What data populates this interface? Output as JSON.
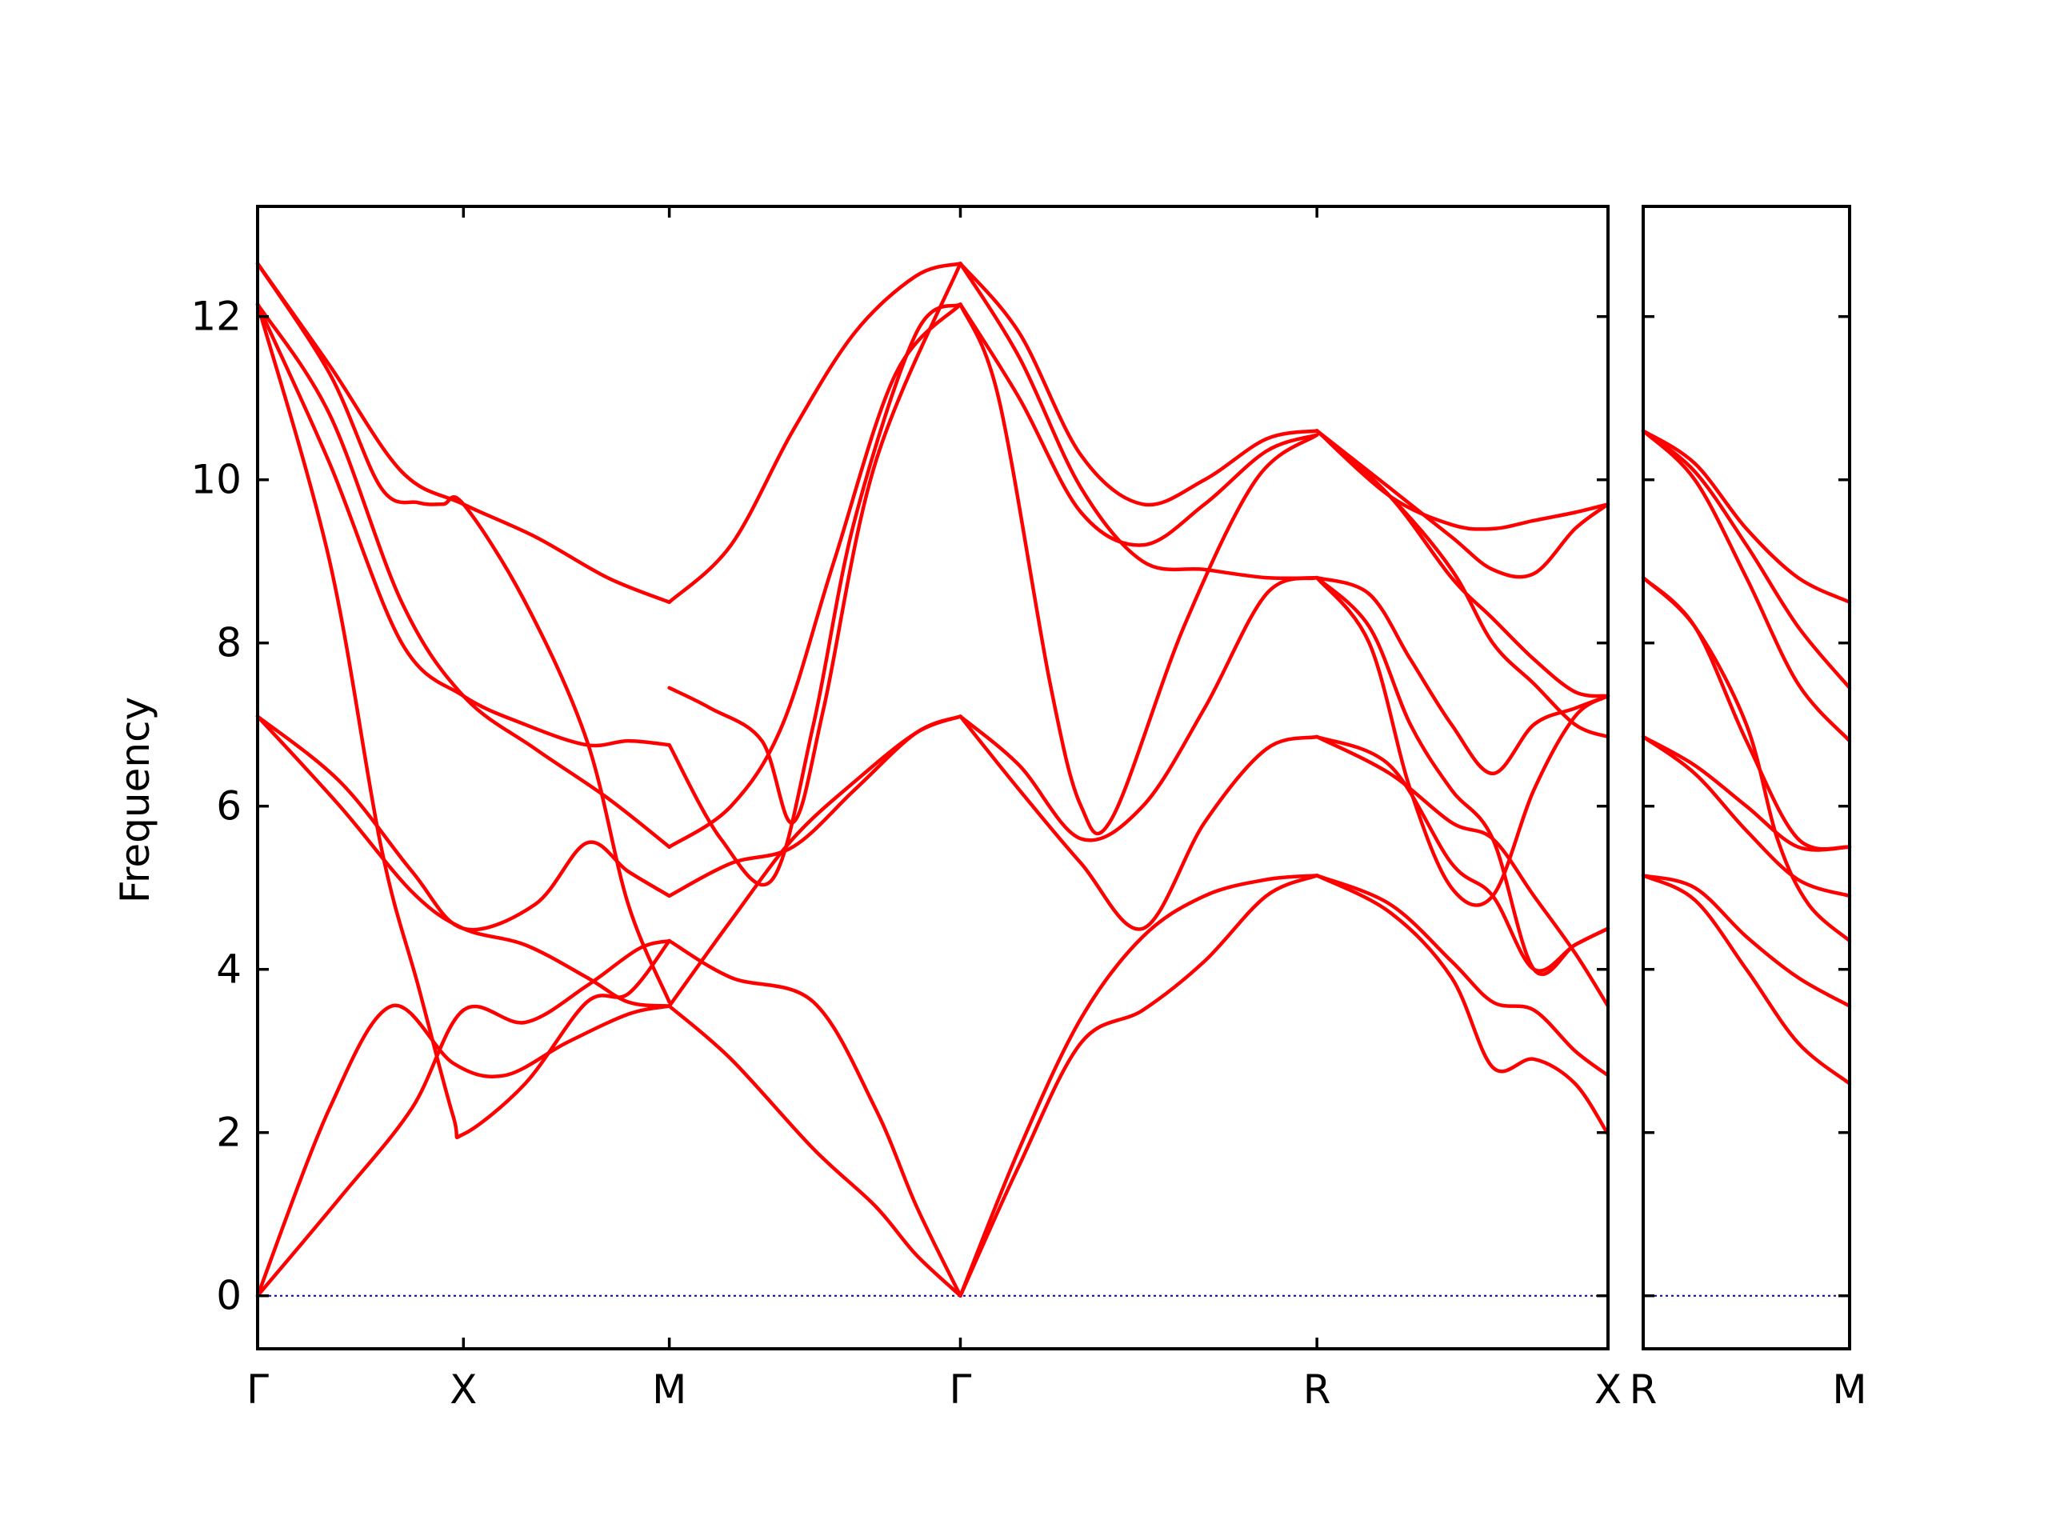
{
  "chart_data": {
    "type": "line",
    "title": "",
    "xlabel": "",
    "ylabel": "Frequency",
    "ylim": [
      -0.65,
      13.35
    ],
    "yticks": [
      0,
      2,
      4,
      6,
      8,
      10,
      12
    ],
    "line_color": "#ff0000",
    "zero_line_color": "#0000aa",
    "panels": [
      {
        "xticks": [
          {
            "x": 0.0,
            "label": "Γ"
          },
          {
            "x": 1.0,
            "label": "X"
          },
          {
            "x": 2.0,
            "label": "M"
          },
          {
            "x": 3.414,
            "label": "Γ"
          },
          {
            "x": 5.146,
            "label": "R"
          },
          {
            "x": 6.56,
            "label": "X"
          }
        ],
        "xlim": [
          0.0,
          6.56
        ],
        "bands": [
          {
            "x": [
              0,
              0.35,
              0.65,
              0.95,
              1.2,
              1.5,
              1.8,
              2.0
            ],
            "y": [
              0.0,
              2.3,
              3.55,
              2.85,
              2.7,
              3.1,
              3.45,
              3.55
            ]
          },
          {
            "x": [
              0,
              0.4,
              0.75,
              1.0,
              1.3,
              1.6,
              1.85,
              2.0
            ],
            "y": [
              0.0,
              1.2,
              2.3,
              3.5,
              3.35,
              3.8,
              4.25,
              4.35
            ]
          },
          {
            "x": [
              0,
              0.4,
              0.75,
              1.0,
              1.3,
              1.6,
              1.8,
              2.0
            ],
            "y": [
              7.1,
              6.0,
              4.95,
              4.5,
              4.3,
              3.9,
              3.6,
              3.55
            ]
          },
          {
            "x": [
              0,
              0.4,
              0.75,
              1.0,
              1.35,
              1.6,
              1.8,
              2.0
            ],
            "y": [
              7.1,
              6.3,
              5.2,
              4.5,
              4.8,
              5.55,
              5.2,
              4.9
            ]
          },
          {
            "x": [
              0,
              0.35,
              0.6,
              0.78,
              0.95,
              1.0,
              1.3,
              1.6,
              1.8,
              2.0
            ],
            "y": [
              12.15,
              9.0,
              5.5,
              3.8,
              2.2,
              1.98,
              2.6,
              3.6,
              3.7,
              4.35
            ]
          },
          {
            "x": [
              0,
              0.35,
              0.7,
              1.0,
              1.3,
              1.6,
              1.8,
              2.0
            ],
            "y": [
              12.15,
              10.2,
              8.0,
              7.35,
              7.0,
              6.75,
              6.8,
              6.75
            ]
          },
          {
            "x": [
              0,
              0.35,
              0.7,
              1.0,
              1.35,
              1.7,
              2.0
            ],
            "y": [
              12.15,
              10.8,
              8.5,
              7.35,
              6.7,
              6.1,
              5.5
            ]
          },
          {
            "x": [
              0,
              0.35,
              0.7,
              1.0,
              1.35,
              1.7,
              2.0
            ],
            "y": [
              12.65,
              11.4,
              10.1,
              9.7,
              9.3,
              8.8,
              8.5
            ]
          },
          {
            "x": [
              0,
              0.35,
              0.6,
              0.78,
              0.9,
              1.0,
              1.3,
              1.6,
              1.8,
              2.0
            ],
            "y": [
              12.65,
              11.3,
              9.9,
              9.72,
              9.7,
              9.7,
              8.5,
              6.8,
              4.8,
              3.6
            ]
          },
          {
            "x": [
              2.0,
              2.3,
              2.7,
              3.0,
              3.2,
              3.414
            ],
            "y": [
              3.55,
              2.9,
              1.8,
              1.1,
              0.5,
              0.0
            ]
          },
          {
            "x": [
              2.0,
              2.3,
              2.7,
              3.0,
              3.2,
              3.414
            ],
            "y": [
              4.35,
              3.9,
              3.6,
              2.3,
              1.1,
              0.0
            ]
          },
          {
            "x": [
              2.0,
              2.3,
              2.6,
              2.9,
              3.2,
              3.414
            ],
            "y": [
              4.9,
              5.3,
              5.5,
              6.2,
              6.9,
              7.1
            ]
          },
          {
            "x": [
              2.0,
              2.3,
              2.6,
              2.9,
              3.2,
              3.414
            ],
            "y": [
              3.55,
              4.6,
              5.6,
              6.3,
              6.9,
              7.1
            ]
          },
          {
            "x": [
              2.0,
              2.25,
              2.5,
              2.7,
              2.9,
              3.2,
              3.414
            ],
            "y": [
              6.75,
              5.6,
              5.1,
              7.0,
              9.5,
              11.8,
              12.15
            ]
          },
          {
            "x": [
              2.0,
              2.3,
              2.55,
              2.8,
              3.1,
              3.414
            ],
            "y": [
              5.5,
              6.0,
              7.0,
              9.0,
              11.3,
              12.15
            ]
          },
          {
            "x": [
              2.0,
              2.2,
              2.45,
              2.6,
              2.75,
              3.0,
              3.414
            ],
            "y": [
              7.45,
              7.2,
              6.8,
              5.8,
              7.2,
              10.2,
              12.65
            ]
          },
          {
            "x": [
              2.0,
              2.3,
              2.6,
              2.9,
              3.2,
              3.414
            ],
            "y": [
              8.5,
              9.2,
              10.6,
              11.8,
              12.5,
              12.65
            ]
          },
          {
            "x": [
              3.414,
              3.7,
              4.0,
              4.3,
              4.6,
              4.9,
              5.146
            ],
            "y": [
              0.0,
              1.6,
              3.1,
              3.5,
              4.1,
              4.9,
              5.15
            ]
          },
          {
            "x": [
              3.414,
              3.7,
              4.0,
              4.3,
              4.6,
              4.9,
              5.146
            ],
            "y": [
              0.0,
              1.8,
              3.4,
              4.4,
              4.9,
              5.1,
              5.15
            ]
          },
          {
            "x": [
              3.414,
              3.7,
              4.0,
              4.3,
              4.6,
              4.9,
              5.146
            ],
            "y": [
              7.1,
              6.2,
              5.3,
              4.5,
              5.8,
              6.7,
              6.85
            ]
          },
          {
            "x": [
              3.414,
              3.7,
              4.0,
              4.3,
              4.6,
              4.9,
              5.146
            ],
            "y": [
              7.1,
              6.5,
              5.6,
              6.0,
              7.2,
              8.6,
              8.8
            ]
          },
          {
            "x": [
              3.414,
              3.6,
              3.85,
              4.0,
              4.15,
              4.5,
              4.85,
              5.146
            ],
            "y": [
              12.15,
              11.0,
              7.5,
              6.0,
              5.85,
              8.2,
              10.0,
              10.55
            ]
          },
          {
            "x": [
              3.414,
              3.7,
              4.0,
              4.3,
              4.6,
              4.9,
              5.146
            ],
            "y": [
              12.15,
              11.0,
              9.6,
              9.2,
              9.7,
              10.35,
              10.55
            ]
          },
          {
            "x": [
              3.414,
              3.7,
              4.0,
              4.3,
              4.6,
              4.9,
              5.146
            ],
            "y": [
              12.65,
              11.5,
              9.9,
              9.0,
              8.9,
              8.8,
              8.8
            ]
          },
          {
            "x": [
              3.414,
              3.7,
              4.0,
              4.3,
              4.6,
              4.9,
              5.146
            ],
            "y": [
              12.65,
              11.8,
              10.3,
              9.7,
              10.0,
              10.5,
              10.6
            ]
          },
          {
            "x": [
              5.146,
              5.5,
              5.8,
              6.0,
              6.2,
              6.4,
              6.56
            ],
            "y": [
              5.15,
              4.8,
              4.1,
              3.6,
              3.5,
              3.0,
              2.7
            ]
          },
          {
            "x": [
              5.146,
              5.5,
              5.8,
              6.0,
              6.2,
              6.4,
              6.56
            ],
            "y": [
              5.15,
              4.7,
              3.9,
              2.8,
              2.9,
              2.6,
              1.98
            ]
          },
          {
            "x": [
              5.146,
              5.5,
              5.8,
              6.0,
              6.2,
              6.4,
              6.56
            ],
            "y": [
              6.85,
              6.5,
              5.3,
              4.9,
              4.0,
              4.3,
              4.5
            ]
          },
          {
            "x": [
              5.146,
              5.5,
              5.8,
              6.0,
              6.2,
              6.4,
              6.56
            ],
            "y": [
              6.85,
              6.4,
              5.8,
              5.6,
              4.9,
              4.2,
              3.55
            ]
          },
          {
            "x": [
              5.146,
              5.4,
              5.6,
              5.8,
              6.0,
              6.2,
              6.4,
              6.56
            ],
            "y": [
              8.8,
              8.0,
              6.2,
              5.0,
              4.9,
              6.2,
              7.1,
              7.35
            ]
          },
          {
            "x": [
              5.146,
              5.4,
              5.6,
              5.8,
              6.0,
              6.2,
              6.4,
              6.56
            ],
            "y": [
              8.8,
              8.2,
              7.0,
              6.2,
              5.6,
              4.0,
              4.3,
              4.5
            ]
          },
          {
            "x": [
              5.146,
              5.4,
              5.6,
              5.8,
              6.0,
              6.2,
              6.4,
              6.56
            ],
            "y": [
              8.8,
              8.6,
              7.8,
              7.0,
              6.4,
              7.0,
              7.2,
              7.35
            ]
          },
          {
            "x": [
              5.146,
              5.5,
              5.8,
              6.0,
              6.2,
              6.4,
              6.56
            ],
            "y": [
              10.6,
              9.8,
              8.8,
              8.3,
              7.8,
              7.4,
              7.35
            ]
          },
          {
            "x": [
              5.146,
              5.5,
              5.8,
              6.0,
              6.2,
              6.4,
              6.56
            ],
            "y": [
              10.6,
              9.9,
              9.3,
              8.9,
              8.85,
              9.4,
              9.7
            ]
          },
          {
            "x": [
              5.146,
              5.5,
              5.8,
              6.0,
              6.2,
              6.4,
              6.56
            ],
            "y": [
              10.6,
              9.8,
              9.45,
              9.4,
              9.5,
              9.6,
              9.7
            ]
          },
          {
            "x": [
              5.146,
              5.5,
              5.8,
              6.0,
              6.2,
              6.4,
              6.56
            ],
            "y": [
              10.6,
              9.8,
              8.9,
              8.0,
              7.5,
              7.0,
              6.85
            ]
          }
        ]
      },
      {
        "xticks": [
          {
            "x": 0.0,
            "label": "R"
          },
          {
            "x": 1.0,
            "label": "M"
          }
        ],
        "xlim": [
          0.0,
          1.0
        ],
        "bands": [
          {
            "x": [
              0,
              0.25,
              0.5,
              0.75,
              1.0
            ],
            "y": [
              5.15,
              4.85,
              4.0,
              3.1,
              2.6
            ]
          },
          {
            "x": [
              0,
              0.25,
              0.5,
              0.75,
              1.0
            ],
            "y": [
              5.15,
              5.0,
              4.4,
              3.9,
              3.55
            ]
          },
          {
            "x": [
              0,
              0.25,
              0.5,
              0.75,
              1.0
            ],
            "y": [
              6.85,
              6.4,
              5.7,
              5.1,
              4.9
            ]
          },
          {
            "x": [
              0,
              0.25,
              0.5,
              0.75,
              1.0
            ],
            "y": [
              6.85,
              6.5,
              6.0,
              5.5,
              5.5
            ]
          },
          {
            "x": [
              0,
              0.25,
              0.5,
              0.75,
              1.0
            ],
            "y": [
              8.8,
              8.2,
              6.8,
              5.6,
              5.5
            ]
          },
          {
            "x": [
              0,
              0.25,
              0.5,
              0.65,
              0.8,
              1.0
            ],
            "y": [
              8.8,
              8.2,
              7.0,
              5.6,
              4.8,
              4.35
            ]
          },
          {
            "x": [
              0,
              0.25,
              0.5,
              0.75,
              1.0
            ],
            "y": [
              10.6,
              10.0,
              8.8,
              7.5,
              6.8
            ]
          },
          {
            "x": [
              0,
              0.25,
              0.5,
              0.75,
              1.0
            ],
            "y": [
              10.6,
              10.1,
              9.2,
              8.2,
              7.45
            ]
          },
          {
            "x": [
              0,
              0.25,
              0.5,
              0.75,
              1.0
            ],
            "y": [
              10.6,
              10.2,
              9.4,
              8.8,
              8.5
            ]
          }
        ]
      }
    ]
  }
}
